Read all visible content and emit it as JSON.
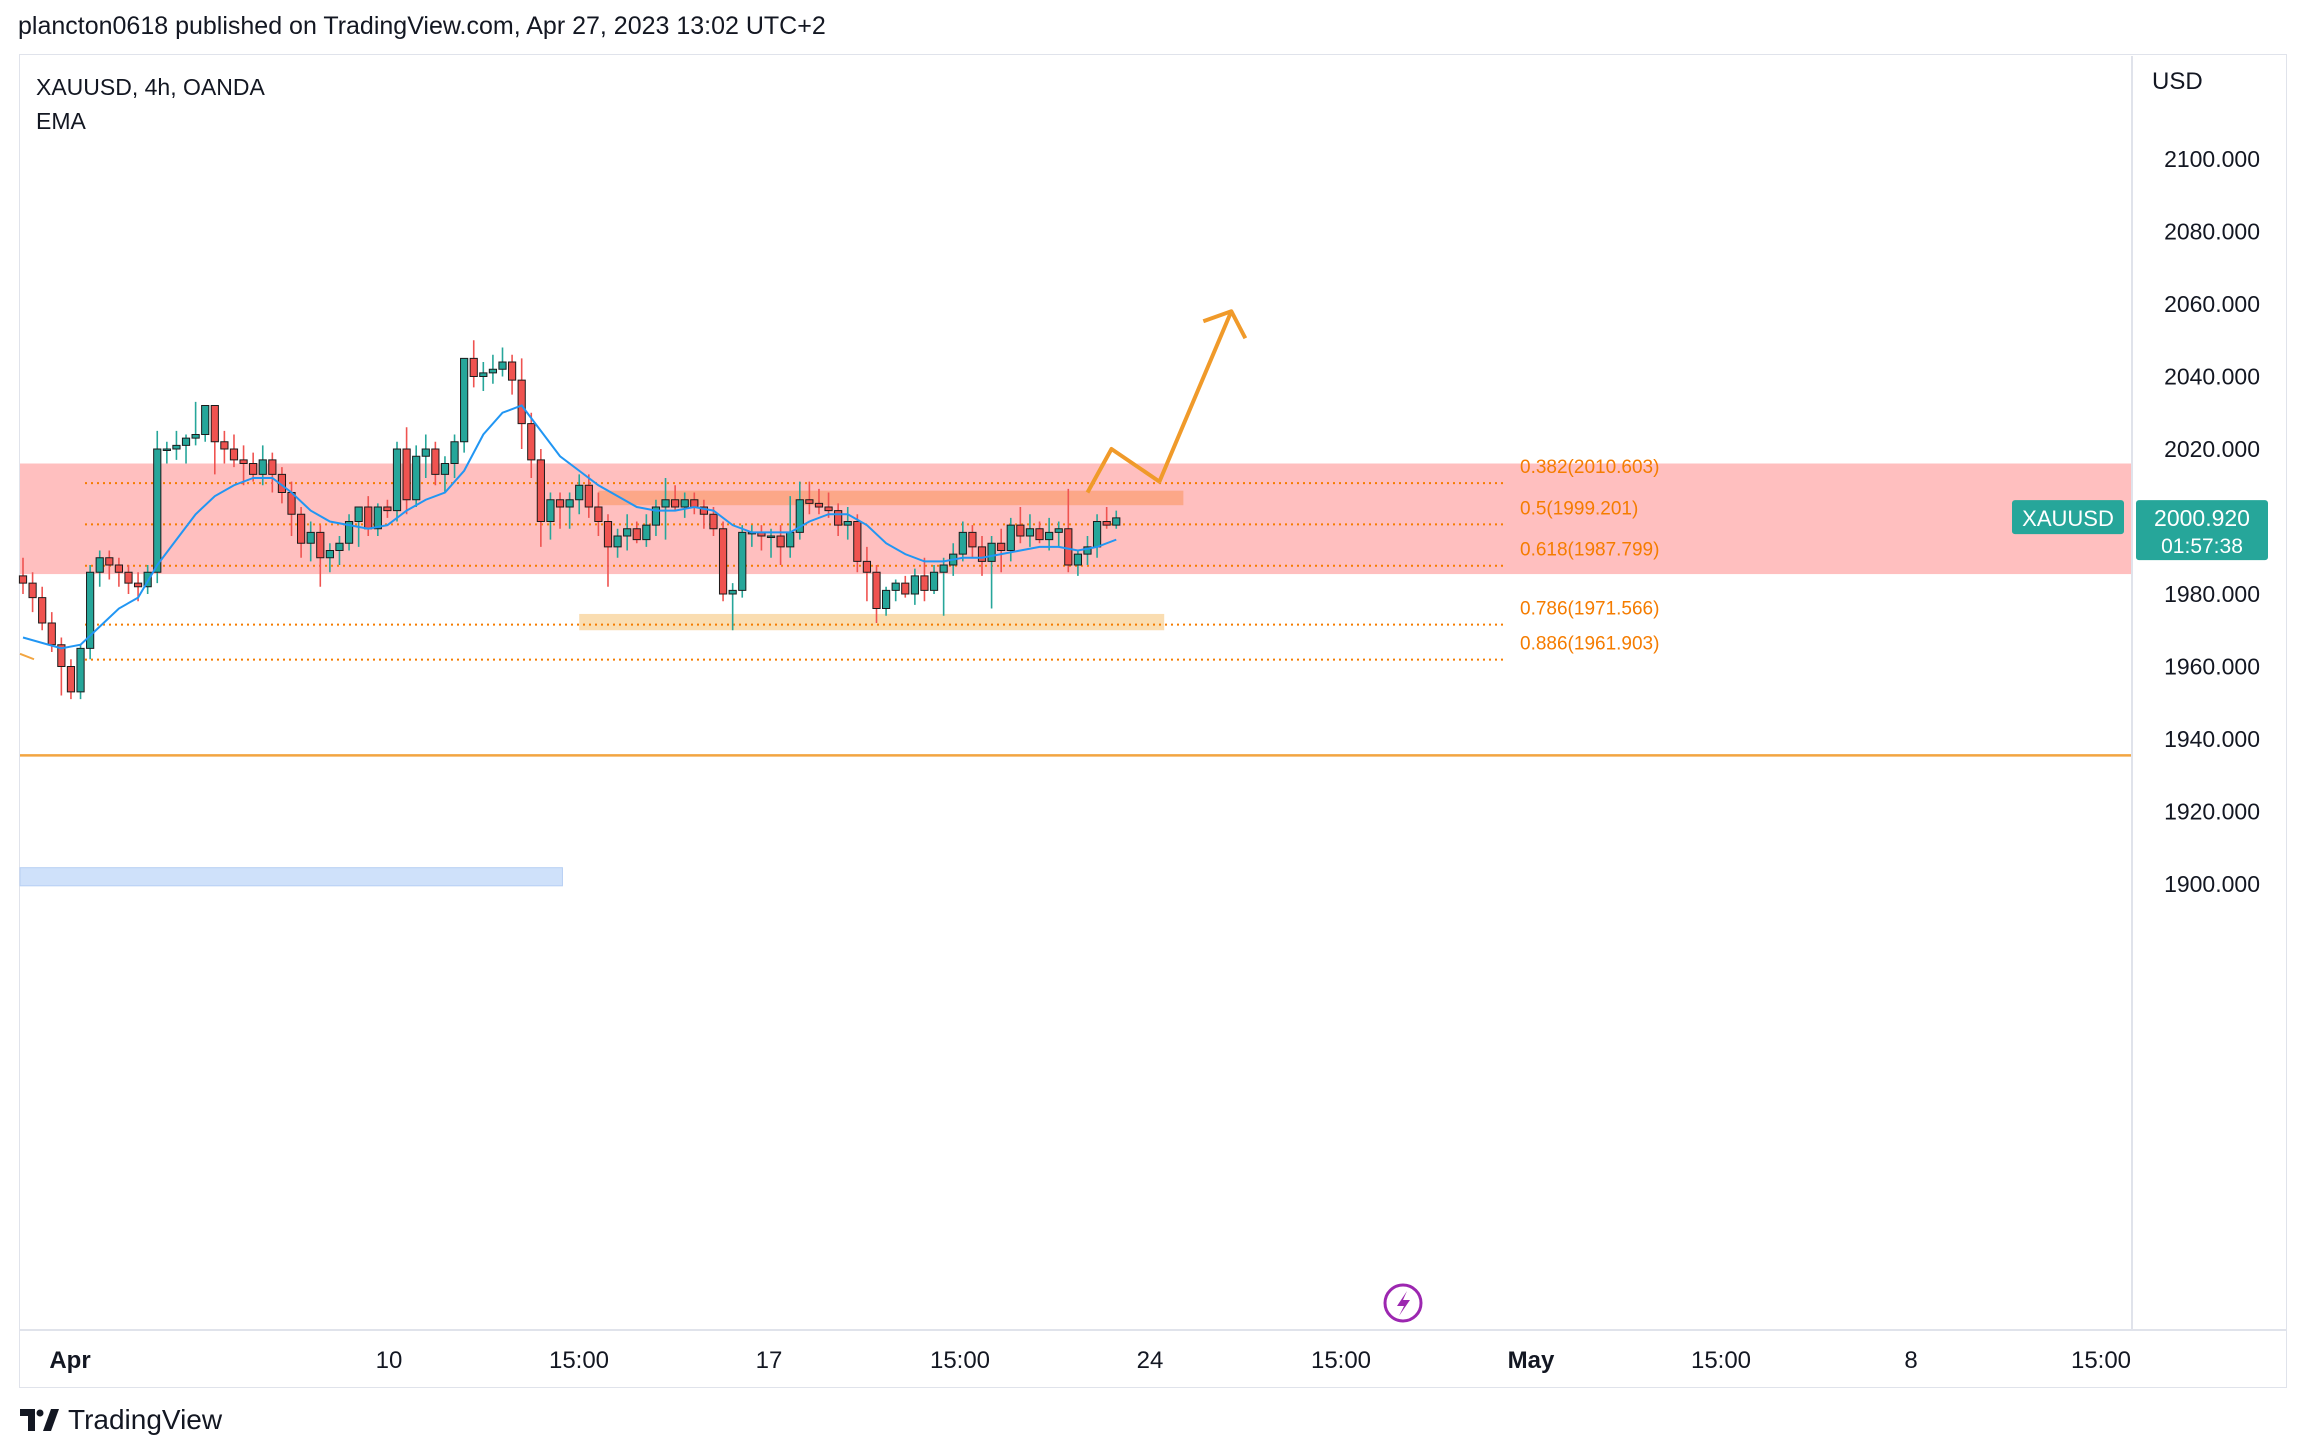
{
  "header": {
    "published_line": "plancton0618 published on TradingView.com, Apr 27, 2023 13:02 UTC+2"
  },
  "chart_title": {
    "symbol_line": "XAUUSD, 4h, OANDA",
    "indicator": "EMA"
  },
  "currency": "USD",
  "footer": {
    "brand": "TradingView"
  },
  "colors": {
    "up": "#26a69a",
    "down": "#ef5350",
    "ema": "#2196f3",
    "fib": "#f57c00",
    "resistance_zone": "#ffbcbc",
    "arrow": "#f09a2a",
    "support_box": "#fad9a8",
    "blue_box": "#cfe1fa",
    "price_tag": "#26a69a",
    "flash_icon": "#9c27b0"
  },
  "icons": {
    "flash": "lightning-icon",
    "logo": "tradingview-logo-icon"
  },
  "chart_data": {
    "type": "candlestick",
    "y_range": [
      1885,
      2112
    ],
    "y_ticks": [
      "2100.000",
      "2080.000",
      "2060.000",
      "2040.000",
      "2020.000",
      "2000.000",
      "1980.000",
      "1960.000",
      "1940.000",
      "1920.000",
      "1900.000"
    ],
    "x_ticks": [
      "Apr",
      "10",
      "15:00",
      "17",
      "15:00",
      "24",
      "15:00",
      "May",
      "15:00",
      "8",
      "15:00"
    ],
    "x_ticks_bold": [
      "Apr",
      "May"
    ],
    "candles": [
      [
        1985,
        1990,
        1980,
        1983
      ],
      [
        1983,
        1986,
        1975,
        1979
      ],
      [
        1979,
        1982,
        1970,
        1972
      ],
      [
        1972,
        1975,
        1964,
        1966
      ],
      [
        1966,
        1968,
        1952,
        1960
      ],
      [
        1960,
        1962,
        1951,
        1953
      ],
      [
        1953,
        1966,
        1951,
        1965
      ],
      [
        1965,
        1988,
        1962,
        1986
      ],
      [
        1986,
        1992,
        1982,
        1990
      ],
      [
        1990,
        1992,
        1984,
        1988
      ],
      [
        1988,
        1990,
        1982,
        1986
      ],
      [
        1986,
        1988,
        1980,
        1983
      ],
      [
        1983,
        1986,
        1978,
        1982
      ],
      [
        1982,
        1988,
        1980,
        1986
      ],
      [
        1986,
        2025,
        1983,
        2020
      ],
      [
        2020,
        2022,
        2016,
        2020
      ],
      [
        2020,
        2025,
        2017,
        2021
      ],
      [
        2021,
        2024,
        2016,
        2023
      ],
      [
        2023,
        2033,
        2021,
        2024
      ],
      [
        2024,
        2032,
        2022,
        2032
      ],
      [
        2032,
        2032,
        2013,
        2022
      ],
      [
        2022,
        2025,
        2016,
        2020
      ],
      [
        2020,
        2024,
        2015,
        2017
      ],
      [
        2017,
        2021,
        2010,
        2016
      ],
      [
        2016,
        2019,
        2011,
        2013
      ],
      [
        2013,
        2021,
        2010,
        2017
      ],
      [
        2017,
        2019,
        2008,
        2013
      ],
      [
        2013,
        2015,
        2005,
        2008
      ],
      [
        2008,
        2011,
        1996,
        2002
      ],
      [
        2002,
        2004,
        1990,
        1994
      ],
      [
        1994,
        2000,
        1989,
        1997
      ],
      [
        1997,
        1999,
        1982,
        1990
      ],
      [
        1990,
        1994,
        1986,
        1992
      ],
      [
        1992,
        1996,
        1988,
        1994
      ],
      [
        1994,
        2002,
        1992,
        2000
      ],
      [
        2000,
        2004,
        1993,
        2004
      ],
      [
        2004,
        2007,
        1996,
        1998
      ],
      [
        1998,
        2005,
        1996,
        2004
      ],
      [
        2004,
        2006,
        2001,
        2003
      ],
      [
        2003,
        2022,
        2000,
        2020
      ],
      [
        2020,
        2026,
        2002,
        2006
      ],
      [
        2006,
        2021,
        2004,
        2018
      ],
      [
        2018,
        2024,
        2012,
        2020
      ],
      [
        2020,
        2022,
        2010,
        2013
      ],
      [
        2013,
        2018,
        2008,
        2016
      ],
      [
        2016,
        2024,
        2012,
        2022
      ],
      [
        2022,
        2045,
        2019,
        2045
      ],
      [
        2045,
        2050,
        2037,
        2040
      ],
      [
        2040,
        2044,
        2036,
        2041
      ],
      [
        2041,
        2046,
        2038,
        2042
      ],
      [
        2042,
        2048,
        2040,
        2044
      ],
      [
        2044,
        2046,
        2035,
        2039
      ],
      [
        2039,
        2045,
        2020,
        2027
      ],
      [
        2027,
        2030,
        2012,
        2017
      ],
      [
        2017,
        2020,
        1993,
        2000
      ],
      [
        2000,
        2008,
        1995,
        2006
      ],
      [
        2006,
        2008,
        1998,
        2004
      ],
      [
        2004,
        2008,
        1998,
        2006
      ],
      [
        2006,
        2013,
        2002,
        2010
      ],
      [
        2010,
        2013,
        2001,
        2004
      ],
      [
        2004,
        2008,
        1996,
        2000
      ],
      [
        2000,
        2002,
        1982,
        1993
      ],
      [
        1993,
        1998,
        1990,
        1996
      ],
      [
        1996,
        2002,
        1992,
        1998
      ],
      [
        1998,
        2000,
        1994,
        1995
      ],
      [
        1995,
        2002,
        1993,
        1999
      ],
      [
        1999,
        2006,
        1996,
        2004
      ],
      [
        2004,
        2012,
        1995,
        2006
      ],
      [
        2006,
        2010,
        2003,
        2004
      ],
      [
        2004,
        2008,
        2001,
        2006
      ],
      [
        2006,
        2008,
        2002,
        2004
      ],
      [
        2004,
        2006,
        1998,
        2002
      ],
      [
        2002,
        2004,
        1996,
        1998
      ],
      [
        1998,
        2000,
        1978,
        1980
      ],
      [
        1980,
        1983,
        1970,
        1981
      ],
      [
        1981,
        1999,
        1979,
        1997
      ],
      [
        1997,
        1999,
        1993,
        1997
      ],
      [
        1997,
        1999,
        1992,
        1996
      ],
      [
        1996,
        1998,
        1990,
        1996
      ],
      [
        1996,
        1999,
        1988,
        1993
      ],
      [
        1993,
        2007,
        1990,
        1997
      ],
      [
        1997,
        2011,
        1995,
        2006
      ],
      [
        2006,
        2011,
        2002,
        2005
      ],
      [
        2005,
        2009,
        2002,
        2004
      ],
      [
        2004,
        2008,
        2001,
        2003
      ],
      [
        2003,
        2005,
        1996,
        1999
      ],
      [
        1999,
        2004,
        1995,
        2000
      ],
      [
        2000,
        2002,
        1986,
        1989
      ],
      [
        1989,
        1993,
        1978,
        1986
      ],
      [
        1986,
        1988,
        1972,
        1976
      ],
      [
        1976,
        1982,
        1974,
        1981
      ],
      [
        1981,
        1984,
        1978,
        1983
      ],
      [
        1983,
        1985,
        1979,
        1980
      ],
      [
        1980,
        1987,
        1977,
        1985
      ],
      [
        1985,
        1990,
        1978,
        1981
      ],
      [
        1981,
        1988,
        1980,
        1986
      ],
      [
        1986,
        1990,
        1974,
        1988
      ],
      [
        1988,
        1994,
        1985,
        1991
      ],
      [
        1991,
        2000,
        1989,
        1997
      ],
      [
        1997,
        1999,
        1990,
        1993
      ],
      [
        1993,
        1996,
        1985,
        1989
      ],
      [
        1989,
        1996,
        1976,
        1994
      ],
      [
        1994,
        1998,
        1986,
        1992
      ],
      [
        1992,
        2001,
        1989,
        1999
      ],
      [
        1999,
        2004,
        1994,
        1996
      ],
      [
        1996,
        2002,
        1993,
        1998
      ],
      [
        1998,
        2000,
        1994,
        1995
      ],
      [
        1995,
        2001,
        1992,
        1997
      ],
      [
        1997,
        2000,
        1993,
        1998
      ],
      [
        1998,
        2009,
        1986,
        1988
      ],
      [
        1988,
        1992,
        1985,
        1991
      ],
      [
        1991,
        1996,
        1988,
        1993
      ],
      [
        1993,
        2002,
        1990,
        2000
      ],
      [
        2000,
        2004,
        1998,
        1999
      ],
      [
        1999,
        2003,
        1998,
        2001
      ]
    ],
    "ema": [
      [
        0,
        1968
      ],
      [
        4,
        1965
      ],
      [
        6,
        1966
      ],
      [
        8,
        1971
      ],
      [
        10,
        1976
      ],
      [
        12,
        1979
      ],
      [
        14,
        1988
      ],
      [
        16,
        1995
      ],
      [
        18,
        2002
      ],
      [
        20,
        2007
      ],
      [
        22,
        2010
      ],
      [
        24,
        2012
      ],
      [
        26,
        2012
      ],
      [
        28,
        2008
      ],
      [
        30,
        2003
      ],
      [
        32,
        2000
      ],
      [
        34,
        1999
      ],
      [
        36,
        1998
      ],
      [
        38,
        1999
      ],
      [
        40,
        2003
      ],
      [
        42,
        2006
      ],
      [
        44,
        2008
      ],
      [
        46,
        2014
      ],
      [
        48,
        2024
      ],
      [
        50,
        2030
      ],
      [
        52,
        2032
      ],
      [
        54,
        2025
      ],
      [
        56,
        2018
      ],
      [
        58,
        2014
      ],
      [
        60,
        2010
      ],
      [
        62,
        2007
      ],
      [
        64,
        2004
      ],
      [
        66,
        2003
      ],
      [
        68,
        2003
      ],
      [
        70,
        2004
      ],
      [
        72,
        2003
      ],
      [
        74,
        1999
      ],
      [
        76,
        1997
      ],
      [
        78,
        1997
      ],
      [
        80,
        1997
      ],
      [
        82,
        2000
      ],
      [
        84,
        2002
      ],
      [
        86,
        2002
      ],
      [
        88,
        1999
      ],
      [
        90,
        1994
      ],
      [
        92,
        1991
      ],
      [
        94,
        1989
      ],
      [
        96,
        1989
      ],
      [
        98,
        1990
      ],
      [
        100,
        1990
      ],
      [
        102,
        1991
      ],
      [
        104,
        1992
      ],
      [
        106,
        1993
      ],
      [
        108,
        1993
      ],
      [
        110,
        1992
      ],
      [
        112,
        1993
      ],
      [
        114,
        1995
      ]
    ],
    "fib_levels": [
      {
        "ratio": "0.382",
        "price": 2010.603,
        "label": "0.382(2010.603)"
      },
      {
        "ratio": "0.5",
        "price": 1999.201,
        "label": "0.5(1999.201)"
      },
      {
        "ratio": "0.618",
        "price": 1987.799,
        "label": "0.618(1987.799)"
      },
      {
        "ratio": "0.786",
        "price": 1971.566,
        "label": "0.786(1971.566)"
      },
      {
        "ratio": "0.886",
        "price": 1961.903,
        "label": "0.886(1961.903)"
      }
    ],
    "resistance_zone": {
      "from": 1985.5,
      "to": 2016
    },
    "support_box": {
      "from_bar": 58,
      "to_bar": 119,
      "low": 1970,
      "high": 1974.5
    },
    "supply_box": {
      "from_bar": 60,
      "to_bar": 121,
      "low": 2004.5,
      "high": 2008.5
    },
    "horizontal_line": 1935.5,
    "blue_box": {
      "from_bar": -1,
      "to_bar": 55,
      "low": 1899.5,
      "high": 1904.5
    },
    "projection_arrow": [
      [
        111,
        2008
      ],
      [
        113.5,
        2020
      ],
      [
        118.5,
        2011
      ],
      [
        126,
        2058
      ]
    ],
    "last_price": {
      "symbol": "XAUUSD",
      "value": "2000.920",
      "countdown": "01:57:38",
      "price": 2000.92
    }
  }
}
